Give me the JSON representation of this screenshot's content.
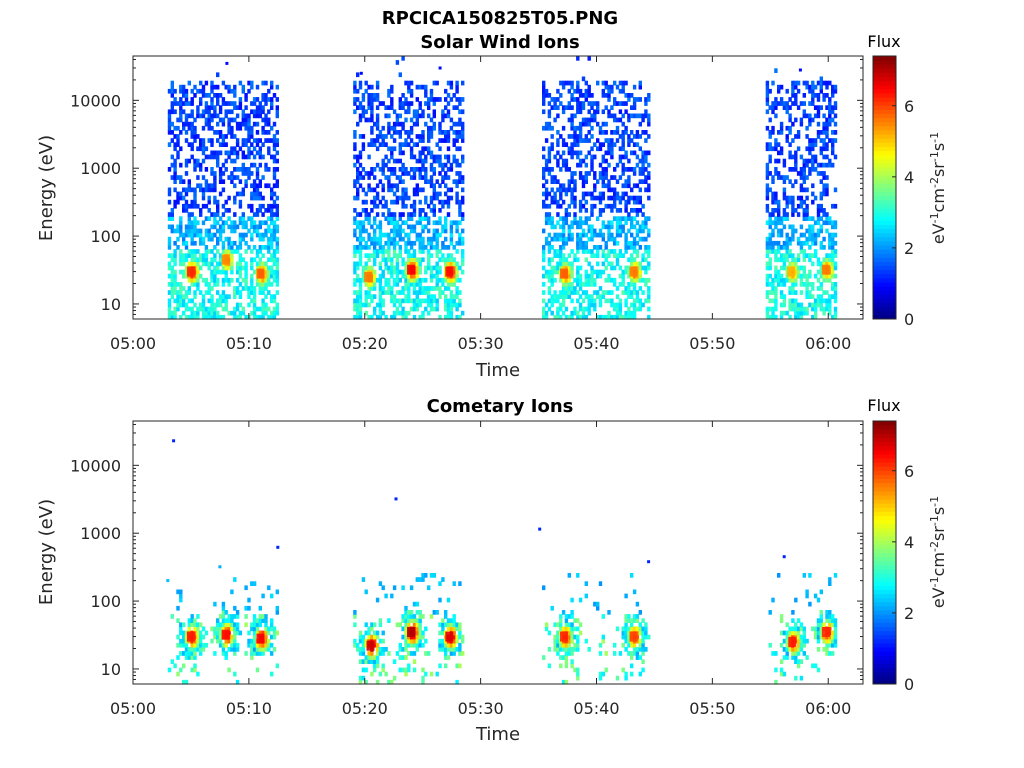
{
  "figure": {
    "filename_title": "RPCICA150825T05.PNG"
  },
  "chart_data": [
    {
      "type": "heatmap",
      "title": "Solar Wind Ions",
      "xlabel": "Time",
      "ylabel": "Energy (eV)",
      "x_tick_labels": [
        "05:00",
        "05:10",
        "05:20",
        "05:30",
        "05:40",
        "05:50",
        "06:00"
      ],
      "x_tick_minutes": [
        0,
        10,
        20,
        30,
        40,
        50,
        60
      ],
      "xlim_minutes": [
        0,
        63
      ],
      "y_scale": "log",
      "y_tick_labels": [
        "10",
        "100",
        "1000",
        "10000"
      ],
      "y_tick_values": [
        10,
        100,
        1000,
        10000
      ],
      "ylim": [
        6,
        45000
      ],
      "colorbar": {
        "label": "Flux",
        "unit_html": "eV<sup>-1</sup>cm<sup>-2</sup>sr<sup>-1</sup>s<sup>-1</sup>",
        "tick_labels": [
          "0",
          "2",
          "4",
          "6"
        ],
        "tick_values": [
          0,
          2,
          4,
          6
        ],
        "range": [
          0,
          7.4
        ]
      },
      "measurement_intervals_minutes": [
        [
          3.0,
          12.5
        ],
        [
          19.0,
          28.5
        ],
        [
          35.3,
          44.5
        ],
        [
          54.6,
          60.5
        ]
      ],
      "peaks": [
        {
          "time_min": 5.0,
          "energy_ev": 30,
          "flux": 6.2
        },
        {
          "time_min": 8.0,
          "energy_ev": 45,
          "flux": 5.5
        },
        {
          "time_min": 11.0,
          "energy_ev": 28,
          "flux": 5.8
        },
        {
          "time_min": 20.3,
          "energy_ev": 25,
          "flux": 5.6
        },
        {
          "time_min": 24.0,
          "energy_ev": 32,
          "flux": 6.5
        },
        {
          "time_min": 27.3,
          "energy_ev": 30,
          "flux": 6.4
        },
        {
          "time_min": 37.2,
          "energy_ev": 28,
          "flux": 5.8
        },
        {
          "time_min": 43.2,
          "energy_ev": 30,
          "flux": 5.6
        },
        {
          "time_min": 56.8,
          "energy_ev": 30,
          "flux": 5.2
        },
        {
          "time_min": 59.8,
          "energy_ev": 32,
          "flux": 5.6
        }
      ],
      "scatter_points": [
        {
          "time_min": 8.1,
          "energy_ev": 35000,
          "flux": 1.0
        },
        {
          "time_min": 19.7,
          "energy_ev": 25000,
          "flux": 1.0
        },
        {
          "time_min": 26.5,
          "energy_ev": 30000,
          "flux": 1.0
        },
        {
          "time_min": 57.6,
          "energy_ev": 28000,
          "flux": 1.0
        }
      ]
    },
    {
      "type": "heatmap",
      "title": "Cometary Ions",
      "xlabel": "Time",
      "ylabel": "Energy (eV)",
      "x_tick_labels": [
        "05:00",
        "05:10",
        "05:20",
        "05:30",
        "05:40",
        "05:50",
        "06:00"
      ],
      "x_tick_minutes": [
        0,
        10,
        20,
        30,
        40,
        50,
        60
      ],
      "xlim_minutes": [
        0,
        63
      ],
      "y_scale": "log",
      "y_tick_labels": [
        "10",
        "100",
        "1000",
        "10000"
      ],
      "y_tick_values": [
        10,
        100,
        1000,
        10000
      ],
      "ylim": [
        6,
        45000
      ],
      "colorbar": {
        "label": "Flux",
        "unit_html": "eV<sup>-1</sup>cm<sup>-2</sup>sr<sup>-1</sup>s<sup>-1</sup>",
        "tick_labels": [
          "0",
          "2",
          "4",
          "6"
        ],
        "tick_values": [
          0,
          2,
          4,
          6
        ],
        "range": [
          0,
          7.4
        ]
      },
      "measurement_intervals_minutes": [
        [
          3.0,
          12.5
        ],
        [
          19.0,
          28.5
        ],
        [
          35.3,
          44.5
        ],
        [
          54.6,
          60.5
        ]
      ],
      "peaks": [
        {
          "time_min": 5.0,
          "energy_ev": 30,
          "flux": 6.3
        },
        {
          "time_min": 8.0,
          "energy_ev": 32,
          "flux": 6.4
        },
        {
          "time_min": 11.0,
          "energy_ev": 28,
          "flux": 6.5
        },
        {
          "time_min": 20.5,
          "energy_ev": 22,
          "flux": 6.8
        },
        {
          "time_min": 24.0,
          "energy_ev": 35,
          "flux": 7.0
        },
        {
          "time_min": 27.3,
          "energy_ev": 30,
          "flux": 6.7
        },
        {
          "time_min": 37.2,
          "energy_ev": 30,
          "flux": 6.2
        },
        {
          "time_min": 43.2,
          "energy_ev": 30,
          "flux": 6.0
        },
        {
          "time_min": 56.9,
          "energy_ev": 25,
          "flux": 6.3
        },
        {
          "time_min": 59.8,
          "energy_ev": 35,
          "flux": 6.2
        }
      ],
      "scatter_points": [
        {
          "time_min": 3.5,
          "energy_ev": 23000,
          "flux": 1.2
        },
        {
          "time_min": 3.0,
          "energy_ev": 200,
          "flux": 2.3
        },
        {
          "time_min": 7.5,
          "energy_ev": 320,
          "flux": 2.2
        },
        {
          "time_min": 12.5,
          "energy_ev": 620,
          "flux": 1.2
        },
        {
          "time_min": 22.7,
          "energy_ev": 3200,
          "flux": 1.2
        },
        {
          "time_min": 35.1,
          "energy_ev": 1150,
          "flux": 1.2
        },
        {
          "time_min": 44.5,
          "energy_ev": 380,
          "flux": 1.2
        },
        {
          "time_min": 56.2,
          "energy_ev": 450,
          "flux": 1.2
        }
      ]
    }
  ]
}
